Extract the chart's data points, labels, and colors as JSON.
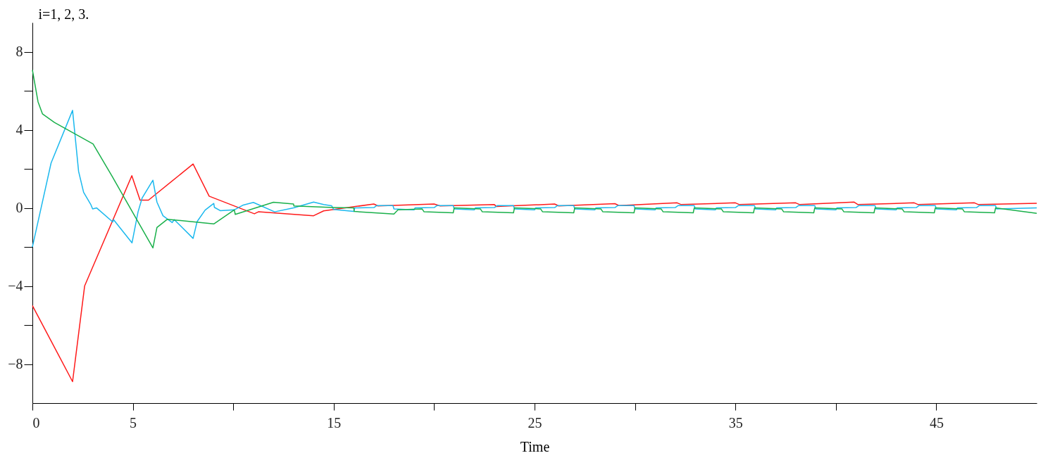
{
  "chart_data": {
    "type": "line",
    "xlabel": "Time",
    "ylabel": "i=1, 2, 3.",
    "xlim": [
      0,
      50
    ],
    "ylim": [
      -10,
      9.5
    ],
    "xticks": [
      {
        "value": 0,
        "label": "0"
      },
      {
        "value": 5,
        "label": "5"
      },
      {
        "value": 10,
        "label": null
      },
      {
        "value": 15,
        "label": "15"
      },
      {
        "value": 20,
        "label": null
      },
      {
        "value": 25,
        "label": "25"
      },
      {
        "value": 30,
        "label": null
      },
      {
        "value": 35,
        "label": "35"
      },
      {
        "value": 40,
        "label": null
      },
      {
        "value": 45,
        "label": "45"
      }
    ],
    "yticks": [
      {
        "value": -8,
        "label": "−8"
      },
      {
        "value": -6,
        "label": null
      },
      {
        "value": -4,
        "label": "−4"
      },
      {
        "value": -2,
        "label": null
      },
      {
        "value": 0,
        "label": "0"
      },
      {
        "value": 2,
        "label": null
      },
      {
        "value": 4,
        "label": "4"
      },
      {
        "value": 6,
        "label": null
      },
      {
        "value": 8,
        "label": "8"
      }
    ],
    "grid": false,
    "legend": false,
    "line_style": "solid",
    "marker": "none",
    "series": [
      {
        "color": "#ff1a1a",
        "x": [
          0,
          2.0,
          2.6,
          4.95,
          5.36,
          5.78,
          8.0,
          8.8,
          11.05,
          11.25,
          14,
          14.5,
          17,
          17.2,
          20,
          20.3,
          23,
          23.1,
          26,
          26.2,
          29,
          29.2,
          32.1,
          32.3,
          35,
          35.2,
          38,
          38.2,
          40.9,
          41.1,
          43.9,
          44.1,
          46.9,
          47.1,
          50
        ],
        "values": [
          -5.0,
          -8.9,
          -4.0,
          1.65,
          0.4,
          0.4,
          2.25,
          0.6,
          -0.3,
          -0.2,
          -0.4,
          -0.15,
          0.2,
          0.1,
          0.2,
          0.1,
          0.17,
          0.07,
          0.2,
          0.1,
          0.22,
          0.12,
          0.26,
          0.17,
          0.26,
          0.17,
          0.26,
          0.17,
          0.3,
          0.17,
          0.26,
          0.17,
          0.26,
          0.17,
          0.24
        ]
      },
      {
        "color": "#1ab8ee",
        "x": [
          0,
          0.93,
          2.0,
          2.3,
          2.55,
          2.9,
          3.0,
          3.2,
          4.0,
          4.04,
          4.96,
          5.26,
          5.46,
          6.0,
          6.2,
          6.5,
          6.96,
          7.06,
          8.0,
          8.2,
          8.6,
          9.03,
          9.06,
          9.35,
          10.05,
          10.5,
          11.0,
          12.06,
          13.0,
          14.0,
          14.5,
          14.9,
          15.0,
          16.0,
          16.05,
          17.0,
          17.15,
          17.95,
          18.0,
          18.95,
          19.0,
          19.05,
          20.0,
          20.15,
          20.95,
          21.0,
          21.95,
          22.0,
          22.05,
          23.0,
          23.15,
          23.95,
          24.0,
          24.95,
          25.0,
          25.05,
          26.0,
          26.15,
          26.95,
          27.0,
          27.95,
          28.0,
          28.05,
          29.0,
          29.15,
          29.95,
          30.0,
          30.95,
          31.0,
          31.05,
          32.0,
          32.15,
          32.95,
          33.0,
          33.95,
          34.0,
          34.05,
          35.0,
          35.15,
          35.95,
          36.0,
          36.95,
          37.0,
          37.05,
          38.0,
          38.15,
          38.95,
          39.0,
          39.95,
          40.0,
          40.05,
          41.0,
          41.15,
          41.95,
          42.0,
          42.95,
          43.0,
          43.05,
          44.0,
          44.15,
          44.95,
          45.0,
          45.95,
          46.0,
          46.05,
          47.0,
          47.15,
          47.95,
          48.0,
          50
        ],
        "values": [
          -2.0,
          2.3,
          5.0,
          1.87,
          0.8,
          0.19,
          -0.05,
          0.0,
          -0.72,
          -0.6,
          -1.79,
          -0.2,
          0.5,
          1.42,
          0.3,
          -0.4,
          -0.75,
          -0.6,
          -1.56,
          -0.7,
          -0.11,
          0.23,
          0.03,
          -0.14,
          -0.1,
          0.15,
          0.28,
          -0.2,
          0.0,
          0.3,
          0.17,
          0.11,
          -0.08,
          -0.18,
          0.0,
          0.02,
          0.12,
          0.12,
          -0.05,
          -0.1,
          -0.1,
          0.0,
          0.02,
          0.12,
          0.12,
          -0.05,
          -0.1,
          -0.1,
          0.0,
          0.02,
          0.12,
          0.12,
          -0.05,
          -0.1,
          -0.1,
          0.0,
          0.02,
          0.12,
          0.12,
          -0.05,
          -0.1,
          -0.1,
          0.0,
          0.02,
          0.12,
          0.12,
          -0.05,
          -0.1,
          -0.1,
          0.0,
          0.02,
          0.12,
          0.12,
          -0.05,
          -0.1,
          -0.1,
          0.0,
          0.02,
          0.12,
          0.12,
          -0.05,
          -0.1,
          -0.1,
          0.0,
          0.02,
          0.12,
          0.12,
          -0.05,
          -0.1,
          -0.1,
          0.0,
          0.02,
          0.12,
          0.12,
          -0.05,
          -0.1,
          -0.1,
          0.0,
          0.02,
          0.12,
          0.12,
          -0.05,
          -0.1,
          -0.1,
          0.0,
          0.02,
          0.12,
          0.12,
          -0.05,
          0.0
        ]
      },
      {
        "color": "#19b04a",
        "x": [
          0,
          0.28,
          0.5,
          1.1,
          3.02,
          3.98,
          6.0,
          6.2,
          6.72,
          9.03,
          10.05,
          10.1,
          12.0,
          13.0,
          13.02,
          15.0,
          16.0,
          16.02,
          18.0,
          18.2,
          19.4,
          19.5,
          20.95,
          21.0,
          22.3,
          22.4,
          23.95,
          24.0,
          25.3,
          25.4,
          26.95,
          27.0,
          28.3,
          28.4,
          29.95,
          30.0,
          31.3,
          31.4,
          32.9,
          32.95,
          34.3,
          34.4,
          35.9,
          35.95,
          37.3,
          37.4,
          38.9,
          38.95,
          40.3,
          40.4,
          41.9,
          41.95,
          43.3,
          43.4,
          44.9,
          44.95,
          46.3,
          46.4,
          47.9,
          47.95,
          50
        ],
        "values": [
          7.07,
          5.44,
          4.82,
          4.38,
          3.28,
          1.6,
          -2.05,
          -1.0,
          -0.58,
          -0.82,
          -0.1,
          -0.33,
          0.29,
          0.2,
          0.1,
          0.02,
          0.0,
          -0.18,
          -0.31,
          -0.1,
          -0.05,
          -0.2,
          -0.25,
          0.0,
          -0.05,
          -0.2,
          -0.25,
          0.0,
          -0.05,
          -0.2,
          -0.25,
          0.0,
          -0.05,
          -0.2,
          -0.25,
          0.0,
          -0.05,
          -0.2,
          -0.25,
          0.0,
          -0.05,
          -0.2,
          -0.25,
          0.0,
          -0.05,
          -0.2,
          -0.25,
          0.0,
          -0.05,
          -0.2,
          -0.25,
          0.0,
          -0.05,
          -0.2,
          -0.25,
          0.0,
          -0.05,
          -0.2,
          -0.25,
          0.0,
          -0.28
        ]
      }
    ]
  }
}
